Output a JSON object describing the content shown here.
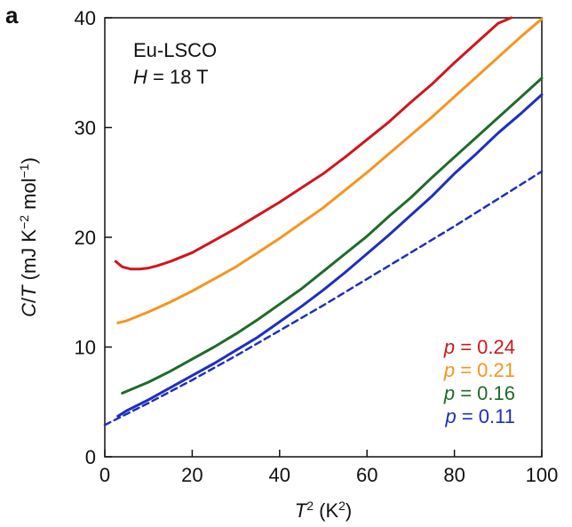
{
  "chart_data": {
    "type": "line",
    "panel_label": "a",
    "annotation": {
      "material": "Eu-LSCO",
      "field_var": "H",
      "field_rest": " = 18 T"
    },
    "xlabel": {
      "var": "T",
      "sup": "2",
      "unit_pre": " (K",
      "unit_sup": "2",
      "unit_post": ")"
    },
    "ylabel": {
      "var1": "C",
      "slash": "/",
      "var2": "T",
      "u1": " (mJ K",
      "s1": "−2",
      "u2": " mol",
      "s2": "−1",
      "u3": ")"
    },
    "xlim": [
      0,
      100
    ],
    "ylim": [
      0,
      40
    ],
    "xticks": [
      "0",
      "20",
      "40",
      "60",
      "80",
      "100"
    ],
    "yticks": [
      "0",
      "10",
      "20",
      "30",
      "40"
    ],
    "xtick_values": [
      0,
      20,
      40,
      60,
      80,
      100
    ],
    "ytick_values": [
      0,
      10,
      20,
      30,
      40
    ],
    "grid": false,
    "legend_position": "bottom-right",
    "series": [
      {
        "name": "p = 0.24",
        "label_var": "p",
        "label_rest": " = 0.24",
        "color": "#d0161c",
        "style": "solid",
        "x": [
          2.5,
          4,
          6,
          8,
          10,
          12,
          15,
          20,
          25,
          30,
          35,
          40,
          45,
          50,
          55,
          60,
          65,
          70,
          75,
          80,
          85,
          90,
          93
        ],
        "y": [
          17.8,
          17.3,
          17.1,
          17.1,
          17.2,
          17.4,
          17.8,
          18.6,
          19.7,
          20.8,
          22.0,
          23.2,
          24.5,
          25.8,
          27.3,
          28.9,
          30.5,
          32.3,
          34.0,
          35.9,
          37.7,
          39.5,
          40.0
        ]
      },
      {
        "name": "p = 0.21",
        "label_var": "p",
        "label_rest": " = 0.21",
        "color": "#f7941d",
        "style": "solid",
        "x": [
          3,
          5,
          10,
          15,
          20,
          25,
          30,
          35,
          40,
          45,
          50,
          55,
          60,
          65,
          70,
          75,
          80,
          85,
          90,
          95,
          100
        ],
        "y": [
          12.2,
          12.4,
          13.2,
          14.1,
          15.1,
          16.2,
          17.3,
          18.6,
          19.9,
          21.3,
          22.7,
          24.3,
          25.9,
          27.6,
          29.3,
          31.0,
          32.8,
          34.6,
          36.4,
          38.2,
          39.9
        ]
      },
      {
        "name": "p = 0.16",
        "label_var": "p",
        "label_rest": " = 0.16",
        "color": "#1e6b2a",
        "style": "solid",
        "x": [
          4,
          10,
          15,
          20,
          25,
          30,
          35,
          40,
          45,
          50,
          55,
          60,
          65,
          70,
          75,
          80,
          85,
          90,
          95,
          100
        ],
        "y": [
          5.8,
          6.8,
          7.8,
          8.9,
          10.0,
          11.2,
          12.5,
          13.9,
          15.3,
          16.9,
          18.5,
          20.1,
          21.9,
          23.6,
          25.5,
          27.3,
          29.1,
          30.9,
          32.7,
          34.5
        ]
      },
      {
        "name": "p = 0.11",
        "label_var": "p",
        "label_rest": " = 0.11",
        "color": "#1d2fbf",
        "style": "solid",
        "x": [
          3,
          5,
          10,
          15,
          20,
          25,
          30,
          35,
          40,
          45,
          50,
          55,
          60,
          65,
          70,
          75,
          80,
          85,
          90,
          95,
          100
        ],
        "y": [
          3.7,
          4.2,
          5.2,
          6.3,
          7.4,
          8.5,
          9.7,
          10.9,
          12.3,
          13.7,
          15.2,
          16.8,
          18.5,
          20.2,
          22.0,
          23.8,
          25.8,
          27.6,
          29.5,
          31.2,
          33.0
        ]
      },
      {
        "name": "",
        "color": "#1d2fbf",
        "style": "dashed",
        "x": [
          0,
          10,
          20,
          30,
          40,
          50,
          60,
          70,
          80,
          90,
          100
        ],
        "y": [
          2.9,
          4.9,
          7.0,
          9.2,
          11.5,
          13.8,
          16.2,
          18.6,
          21.0,
          23.5,
          26.0
        ]
      }
    ]
  }
}
